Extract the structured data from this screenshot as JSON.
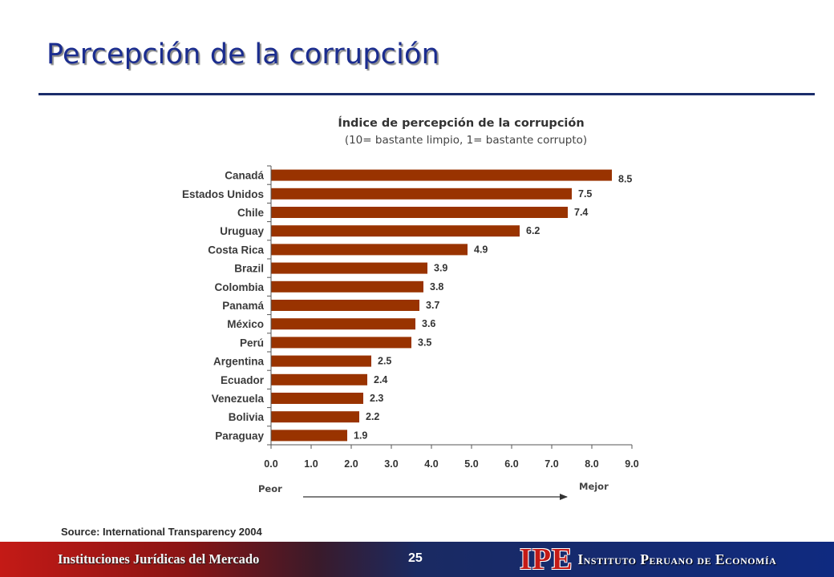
{
  "slide": {
    "title": "Percepción de la corrupción",
    "source": "Source: International Transparency 2004"
  },
  "footer": {
    "left_text": "Instituciones Jurídicas del Mercado",
    "page_number": "25",
    "logo_mark": "IPE",
    "logo_text": "Instituto Peruano de Economía"
  },
  "chart_data": {
    "type": "bar",
    "orientation": "horizontal",
    "title": "Índice de percepción de la corrupción",
    "subtitle": "(10= bastante limpio, 1= bastante corrupto)",
    "categories": [
      "Canadá",
      "Estados Unidos",
      "Chile",
      "Uruguay",
      "Costa Rica",
      "Brazil",
      "Colombia",
      "Panamá",
      "México",
      "Perú",
      "Argentina",
      "Ecuador",
      "Venezuela",
      "Bolivia",
      "Paraguay"
    ],
    "values": [
      8.5,
      7.5,
      7.4,
      6.2,
      4.9,
      3.9,
      3.8,
      3.7,
      3.6,
      3.5,
      2.5,
      2.4,
      2.3,
      2.2,
      1.9
    ],
    "value_labels": [
      "8.5",
      "7.5",
      "7.4",
      "6.2",
      "4.9",
      "3.9",
      "3.8",
      "3.7",
      "3.6",
      "3.5",
      "2.5",
      "2.4",
      "2.3",
      "2.2",
      "1.9"
    ],
    "xlim": [
      0,
      9
    ],
    "x_ticks": [
      "0.0",
      "1.0",
      "2.0",
      "3.0",
      "4.0",
      "5.0",
      "6.0",
      "7.0",
      "8.0",
      "9.0"
    ],
    "annotations": {
      "left": "Peor",
      "right": "Mejor"
    },
    "bar_color": "#993300",
    "grid": false,
    "legend": "none"
  }
}
